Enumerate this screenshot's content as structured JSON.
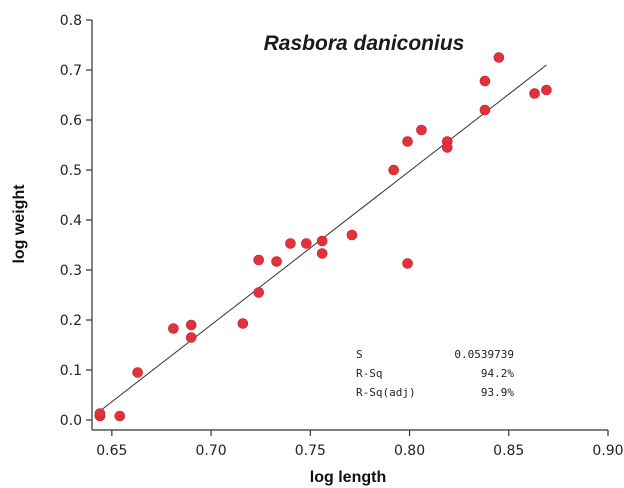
{
  "chart_data": {
    "type": "scatter",
    "title": "Rasbora daniconius",
    "xlabel": "log length",
    "ylabel": "log weight",
    "xlim": [
      0.64,
      0.9
    ],
    "ylim": [
      -0.02,
      0.8
    ],
    "x_ticks": [
      "0.65",
      "0.70",
      "0.75",
      "0.80",
      "0.85",
      "0.90"
    ],
    "y_ticks": [
      "0.0",
      "0.1",
      "0.2",
      "0.3",
      "0.4",
      "0.5",
      "0.6",
      "0.7",
      "0.8"
    ],
    "x_tick_values": [
      0.65,
      0.7,
      0.75,
      0.8,
      0.85,
      0.9
    ],
    "y_tick_values": [
      0.0,
      0.1,
      0.2,
      0.3,
      0.4,
      0.5,
      0.6,
      0.7,
      0.8
    ],
    "points": [
      {
        "x": 0.644,
        "y": 0.008
      },
      {
        "x": 0.644,
        "y": 0.013
      },
      {
        "x": 0.654,
        "y": 0.008
      },
      {
        "x": 0.663,
        "y": 0.095
      },
      {
        "x": 0.681,
        "y": 0.183
      },
      {
        "x": 0.69,
        "y": 0.19
      },
      {
        "x": 0.69,
        "y": 0.165
      },
      {
        "x": 0.716,
        "y": 0.193
      },
      {
        "x": 0.724,
        "y": 0.32
      },
      {
        "x": 0.724,
        "y": 0.255
      },
      {
        "x": 0.733,
        "y": 0.317
      },
      {
        "x": 0.74,
        "y": 0.353
      },
      {
        "x": 0.748,
        "y": 0.353
      },
      {
        "x": 0.756,
        "y": 0.358
      },
      {
        "x": 0.756,
        "y": 0.333
      },
      {
        "x": 0.771,
        "y": 0.37
      },
      {
        "x": 0.792,
        "y": 0.5
      },
      {
        "x": 0.799,
        "y": 0.557
      },
      {
        "x": 0.799,
        "y": 0.313
      },
      {
        "x": 0.806,
        "y": 0.58
      },
      {
        "x": 0.819,
        "y": 0.557
      },
      {
        "x": 0.819,
        "y": 0.545
      },
      {
        "x": 0.838,
        "y": 0.678
      },
      {
        "x": 0.838,
        "y": 0.62
      },
      {
        "x": 0.845,
        "y": 0.725
      },
      {
        "x": 0.863,
        "y": 0.653
      },
      {
        "x": 0.869,
        "y": 0.66
      }
    ],
    "fit_line": {
      "x": [
        0.644,
        0.869
      ],
      "y": [
        0.018,
        0.71
      ]
    },
    "color": "#e0323c",
    "grid": false,
    "stats": [
      {
        "label": "S",
        "value": "0.0539739"
      },
      {
        "label": "R-Sq",
        "value": "94.2%"
      },
      {
        "label": "R-Sq(adj)",
        "value": "93.9%"
      }
    ]
  }
}
